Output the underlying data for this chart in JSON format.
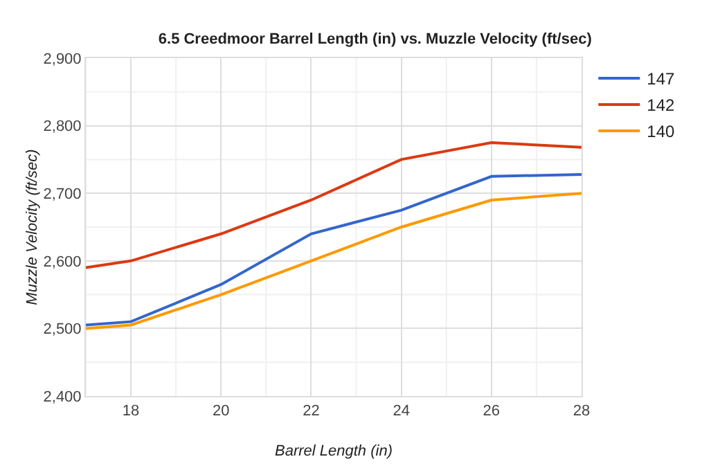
{
  "chart_data": {
    "type": "line",
    "title": "6.5 Creedmoor Barrel Length (in) vs. Muzzle Velocity (ft/sec)",
    "xlabel": "Barrel Length (in)",
    "ylabel": "Muzzle Velocity (ft/sec)",
    "x": [
      17,
      18,
      20,
      22,
      24,
      26,
      28
    ],
    "series": [
      {
        "name": "147",
        "color": "#3366cc",
        "values": [
          2505,
          2510,
          2565,
          2640,
          2675,
          2725,
          2728
        ]
      },
      {
        "name": "142",
        "color": "#dc3912",
        "values": [
          2590,
          2600,
          2640,
          2690,
          2750,
          2775,
          2768
        ]
      },
      {
        "name": "140",
        "color": "#ff9900",
        "values": [
          2500,
          2505,
          2550,
          2600,
          2650,
          2690,
          2700
        ]
      }
    ],
    "xlim": [
      17,
      28
    ],
    "xticks": [
      18,
      20,
      22,
      24,
      26,
      28
    ],
    "ylim": [
      2400,
      2900
    ],
    "yticks": [
      {
        "value": 2400,
        "label": "2,400"
      },
      {
        "value": 2500,
        "label": "2,500"
      },
      {
        "value": 2600,
        "label": "2,600"
      },
      {
        "value": 2700,
        "label": "2,700"
      },
      {
        "value": 2800,
        "label": "2,800"
      },
      {
        "value": 2900,
        "label": "2,900"
      }
    ],
    "grid": true,
    "legend": "right",
    "marker": "none",
    "line_style": "solid"
  }
}
